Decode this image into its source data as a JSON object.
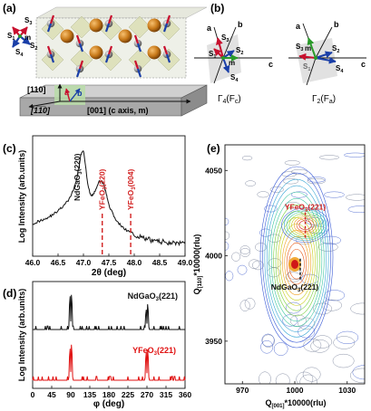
{
  "panel_labels": {
    "a": "(a)",
    "b": "(b)",
    "c": "(c)",
    "d": "(d)",
    "e": "(e)"
  },
  "panel_a": {
    "spins": {
      "s1": "S",
      "s1_sub": "1",
      "s2": "S",
      "s2_sub": "2",
      "s3": "S",
      "s3_sub": "3",
      "s4": "S",
      "s4_sub": "4",
      "m": "m"
    },
    "axes": {
      "a": "a",
      "b": "b",
      "c": "c"
    },
    "substrate": {
      "dir1": "[110]",
      "dir2": "[1̅1̅0]",
      "dir3": "[001] (c axis, m)"
    },
    "colors": {
      "spin_red": "#c8102e",
      "spin_blue": "#1a3fa8",
      "fe_sphere": "#c87a1a",
      "o_sphere": "#9a9a9a",
      "octa": "#d8dcae"
    }
  },
  "panel_b": {
    "left": {
      "label_main": "Γ",
      "label_sub": "4",
      "label_paren": "(F",
      "label_paren_sub": "c",
      "close": ")"
    },
    "right": {
      "label_main": "Γ",
      "label_sub": "2",
      "label_paren": "(F",
      "label_paren_sub": "a",
      "close": ")"
    },
    "axes": {
      "a": "a",
      "b": "b",
      "c": "c",
      "m": "m"
    },
    "spins": {
      "s1": "S",
      "s1_sub": "1",
      "s2": "S",
      "s2_sub": "2",
      "s3": "S",
      "s3_sub": "3",
      "s4": "S",
      "s4_sub": "4"
    }
  },
  "chart_data": [
    {
      "panel": "c",
      "type": "line",
      "xlabel": "2θ (deg)",
      "ylabel": "Log Intensity (arb.units)",
      "xlim": [
        46.0,
        49.0
      ],
      "x_ticks": [
        "46.0",
        "46.5",
        "47.0",
        "47.5",
        "48.0",
        "48.5",
        "49.0"
      ],
      "x_tick_values": [
        46.0,
        46.5,
        47.0,
        47.5,
        48.0,
        48.5,
        49.0
      ],
      "annotations": [
        {
          "text": "NdGaO",
          "sub": "3",
          "rest": "(220)",
          "x": 47.0,
          "color": "#111111"
        },
        {
          "text": "YFeO",
          "sub": "3",
          "rest": "(220)",
          "x": 47.37,
          "color": "#d22020"
        },
        {
          "text": "YFeO",
          "sub": "3",
          "rest": "(004)",
          "x": 47.93,
          "color": "#d22020"
        }
      ],
      "series": [
        {
          "color": "#111111",
          "x": [
            46.0,
            46.1,
            46.2,
            46.3,
            46.4,
            46.5,
            46.6,
            46.7,
            46.8,
            46.85,
            46.9,
            46.95,
            47.0,
            47.05,
            47.1,
            47.15,
            47.2,
            47.25,
            47.3,
            47.35,
            47.4,
            47.45,
            47.5,
            47.6,
            47.7,
            47.8,
            47.9,
            48.0,
            48.1,
            48.2,
            48.3,
            48.4,
            48.5,
            48.6,
            48.7,
            48.8,
            48.9,
            49.0
          ],
          "y": [
            0.27,
            0.29,
            0.31,
            0.33,
            0.36,
            0.4,
            0.44,
            0.5,
            0.6,
            0.68,
            0.8,
            0.95,
            1.0,
            0.8,
            0.62,
            0.55,
            0.56,
            0.62,
            0.68,
            0.7,
            0.66,
            0.56,
            0.46,
            0.34,
            0.27,
            0.22,
            0.19,
            0.16,
            0.14,
            0.12,
            0.11,
            0.1,
            0.09,
            0.09,
            0.08,
            0.08,
            0.07,
            0.07
          ]
        }
      ]
    },
    {
      "panel": "d",
      "type": "line",
      "xlabel": "φ (deg)",
      "ylabel": "Log Intensity (arb.units)",
      "xlim": [
        0,
        360
      ],
      "x_ticks": [
        "0",
        "45",
        "90",
        "135",
        "180",
        "225",
        "270",
        "315",
        "360"
      ],
      "x_tick_values": [
        0,
        45,
        90,
        135,
        180,
        225,
        270,
        315,
        360
      ],
      "series": [
        {
          "name": "NdGaO",
          "name_sub": "3",
          "name_rest": "(221)",
          "color": "#111111",
          "peaks": [
            [
              88,
              0.92
            ],
            [
              92,
              0.96
            ],
            [
              268,
              0.55
            ],
            [
              272,
              0.7
            ]
          ]
        },
        {
          "name": "YFeO",
          "name_sub": "3",
          "name_rest": "(221)",
          "color": "#e01010",
          "peaks": [
            [
              88,
              0.8
            ],
            [
              92,
              0.9
            ],
            [
              268,
              0.72
            ],
            [
              272,
              0.78
            ]
          ]
        }
      ]
    },
    {
      "panel": "e",
      "type": "heatmap",
      "xlabel": "Q",
      "xlabel_sub": "[001]",
      "xlabel_rest": "*10000(rlu)",
      "ylabel": "Q",
      "ylabel_sub": "[110]",
      "ylabel_rest": "*10000(rlu)",
      "xlim": [
        960,
        1040
      ],
      "ylim": [
        3925,
        4065
      ],
      "x_ticks": [
        "970",
        "1000",
        "1030"
      ],
      "x_tick_values": [
        970,
        1000,
        1030
      ],
      "y_ticks": [
        "3950",
        "4000",
        "4050"
      ],
      "y_tick_values": [
        3950,
        4000,
        4050
      ],
      "annotations": [
        {
          "text": "YFeO",
          "sub": "3",
          "rest": "(221)",
          "color": "#d22020",
          "qx": 1006,
          "qz": 4018
        },
        {
          "text": "NdGaO",
          "sub": "3",
          "rest": "(221)",
          "color": "#111111",
          "qx": 1000,
          "qz": 3993
        }
      ]
    }
  ]
}
